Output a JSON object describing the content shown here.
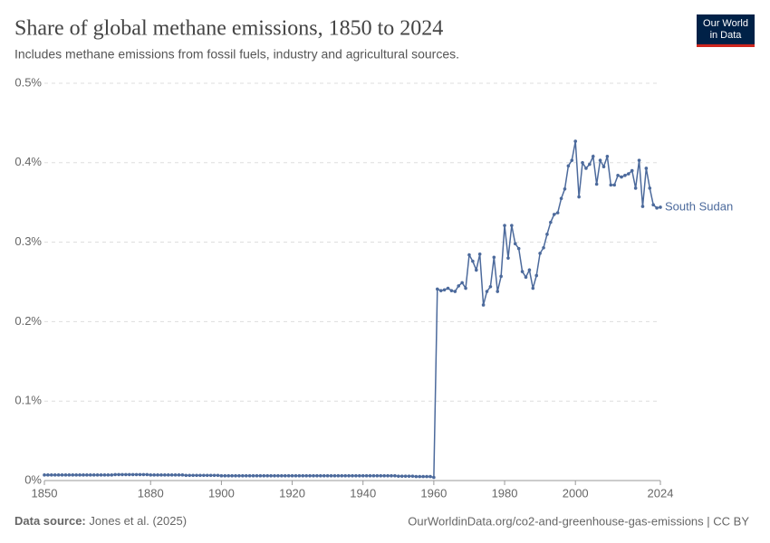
{
  "chart_data": {
    "type": "line",
    "title": "Share of global methane emissions, 1850 to 2024",
    "subtitle": "Includes methane emissions from fossil fuels, industry and agricultural sources.",
    "source_label": "Data source:",
    "source": "Jones et al. (2025)",
    "footer_right": "OurWorldinData.org/co2-and-greenhouse-gas-emissions | CC BY",
    "logo": [
      "Our World",
      "in Data"
    ],
    "xlim": [
      1850,
      2024
    ],
    "xticks": [
      1850,
      1880,
      1900,
      1920,
      1940,
      1960,
      1980,
      2000,
      2024
    ],
    "ylim": [
      0,
      0.5
    ],
    "yticks": [
      {
        "value": 0,
        "label": "0%"
      },
      {
        "value": 0.1,
        "label": "0.1%"
      },
      {
        "value": 0.2,
        "label": "0.2%"
      },
      {
        "value": 0.3,
        "label": "0.3%"
      },
      {
        "value": 0.4,
        "label": "0.4%"
      },
      {
        "value": 0.5,
        "label": "0.5%"
      }
    ],
    "grid": true,
    "x": [
      1850,
      1851,
      1852,
      1853,
      1854,
      1855,
      1856,
      1857,
      1858,
      1859,
      1860,
      1861,
      1862,
      1863,
      1864,
      1865,
      1866,
      1867,
      1868,
      1869,
      1870,
      1871,
      1872,
      1873,
      1874,
      1875,
      1876,
      1877,
      1878,
      1879,
      1880,
      1881,
      1882,
      1883,
      1884,
      1885,
      1886,
      1887,
      1888,
      1889,
      1890,
      1891,
      1892,
      1893,
      1894,
      1895,
      1896,
      1897,
      1898,
      1899,
      1900,
      1901,
      1902,
      1903,
      1904,
      1905,
      1906,
      1907,
      1908,
      1909,
      1910,
      1911,
      1912,
      1913,
      1914,
      1915,
      1916,
      1917,
      1918,
      1919,
      1920,
      1921,
      1922,
      1923,
      1924,
      1925,
      1926,
      1927,
      1928,
      1929,
      1930,
      1931,
      1932,
      1933,
      1934,
      1935,
      1936,
      1937,
      1938,
      1939,
      1940,
      1941,
      1942,
      1943,
      1944,
      1945,
      1946,
      1947,
      1948,
      1949,
      1950,
      1951,
      1952,
      1953,
      1954,
      1955,
      1956,
      1957,
      1958,
      1959,
      1960,
      1961,
      1962,
      1963,
      1964,
      1965,
      1966,
      1967,
      1968,
      1969,
      1970,
      1971,
      1972,
      1973,
      1974,
      1975,
      1976,
      1977,
      1978,
      1979,
      1980,
      1981,
      1982,
      1983,
      1984,
      1985,
      1986,
      1987,
      1988,
      1989,
      1990,
      1991,
      1992,
      1993,
      1994,
      1995,
      1996,
      1997,
      1998,
      1999,
      2000,
      2001,
      2002,
      2003,
      2004,
      2005,
      2006,
      2007,
      2008,
      2009,
      2010,
      2011,
      2012,
      2013,
      2014,
      2015,
      2016,
      2017,
      2018,
      2019,
      2020,
      2021,
      2022,
      2023,
      2024
    ],
    "series": [
      {
        "name": "South Sudan",
        "color": "#4c6a9c",
        "values": [
          0.007,
          0.007,
          0.007,
          0.007,
          0.007,
          0.007,
          0.007,
          0.007,
          0.007,
          0.007,
          0.007,
          0.007,
          0.007,
          0.007,
          0.007,
          0.007,
          0.007,
          0.007,
          0.007,
          0.007,
          0.0075,
          0.0075,
          0.0075,
          0.0075,
          0.0075,
          0.0075,
          0.0075,
          0.0075,
          0.0075,
          0.0075,
          0.007,
          0.007,
          0.007,
          0.007,
          0.007,
          0.007,
          0.007,
          0.007,
          0.007,
          0.007,
          0.0065,
          0.0065,
          0.0065,
          0.0065,
          0.0065,
          0.0065,
          0.0065,
          0.0065,
          0.0065,
          0.0065,
          0.006,
          0.006,
          0.006,
          0.006,
          0.006,
          0.006,
          0.006,
          0.006,
          0.006,
          0.006,
          0.006,
          0.006,
          0.006,
          0.006,
          0.006,
          0.006,
          0.006,
          0.006,
          0.006,
          0.006,
          0.006,
          0.006,
          0.006,
          0.006,
          0.006,
          0.006,
          0.006,
          0.006,
          0.006,
          0.006,
          0.006,
          0.006,
          0.006,
          0.006,
          0.006,
          0.006,
          0.006,
          0.006,
          0.006,
          0.006,
          0.006,
          0.006,
          0.006,
          0.006,
          0.006,
          0.006,
          0.006,
          0.006,
          0.006,
          0.006,
          0.0055,
          0.0055,
          0.0055,
          0.0055,
          0.0055,
          0.005,
          0.005,
          0.005,
          0.005,
          0.005,
          0.004,
          0.241,
          0.239,
          0.24,
          0.242,
          0.239,
          0.238,
          0.245,
          0.249,
          0.242,
          0.284,
          0.276,
          0.265,
          0.285,
          0.221,
          0.238,
          0.244,
          0.281,
          0.238,
          0.257,
          0.321,
          0.28,
          0.321,
          0.298,
          0.292,
          0.263,
          0.256,
          0.265,
          0.242,
          0.258,
          0.286,
          0.293,
          0.31,
          0.325,
          0.335,
          0.337,
          0.355,
          0.367,
          0.396,
          0.403,
          0.427,
          0.357,
          0.4,
          0.393,
          0.398,
          0.408,
          0.373,
          0.403,
          0.395,
          0.408,
          0.372,
          0.372,
          0.384,
          0.382,
          0.384,
          0.386,
          0.39,
          0.368,
          0.403,
          0.345,
          0.393,
          0.368,
          0.347,
          0.343,
          0.344
        ]
      }
    ]
  }
}
